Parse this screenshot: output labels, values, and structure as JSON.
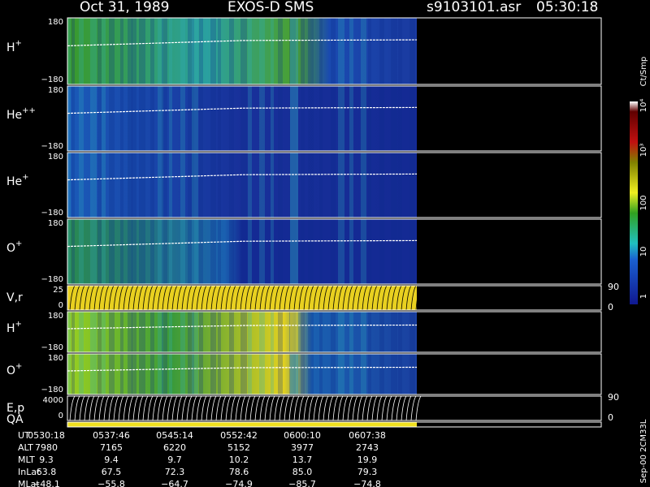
{
  "header": {
    "date": "Oct 31, 1989",
    "instrument": "EXOS-D SMS",
    "file": "s9103101.asr",
    "time": "05:30:18"
  },
  "panels": [
    {
      "label": "H",
      "sup": "+",
      "ticks": [
        "180",
        "−180"
      ]
    },
    {
      "label": "He",
      "sup": "++",
      "ticks": [
        "180",
        "−180"
      ]
    },
    {
      "label": "He",
      "sup": "+",
      "ticks": [
        "180",
        "−180"
      ]
    },
    {
      "label": "O",
      "sup": "+",
      "ticks": [
        "180",
        "−180"
      ]
    },
    {
      "label": "V,r",
      "ticks": [
        "25",
        "0"
      ],
      "right_ticks": [
        "90",
        "0"
      ]
    },
    {
      "label": "H",
      "sup": "+",
      "ticks": [
        "180",
        "−180"
      ]
    },
    {
      "label": "O",
      "sup": "+",
      "ticks": [
        "180",
        "−180"
      ]
    },
    {
      "label": "E,p",
      "ticks": [
        "4000",
        "0"
      ],
      "right_ticks": [
        "90",
        "0"
      ]
    }
  ],
  "qa_label": "QA",
  "colorbar": {
    "unit": "Ct/Smp",
    "ticks": [
      "10⁴",
      "10³",
      "100",
      "10",
      "1"
    ]
  },
  "footer": {
    "labels": [
      "UT",
      "ALT",
      "MLT",
      "InLat",
      "MLat"
    ],
    "rows": [
      [
        "0530:18",
        "0537:46",
        "0545:14",
        "0552:42",
        "0600:10",
        "0607:38"
      ],
      [
        "7980",
        "7165",
        "6220",
        "5152",
        "3977",
        "2743"
      ],
      [
        "9.3",
        "9.4",
        "9.7",
        "10.2",
        "13.7",
        "19.9"
      ],
      [
        "63.8",
        "67.5",
        "72.3",
        "78.6",
        "85.0",
        "79.3"
      ],
      [
        "−48.1",
        "−55.8",
        "−64.7",
        "−74.9",
        "−85.7",
        "−74.8"
      ]
    ]
  },
  "side_note": "Sep-00 2CM33L"
}
